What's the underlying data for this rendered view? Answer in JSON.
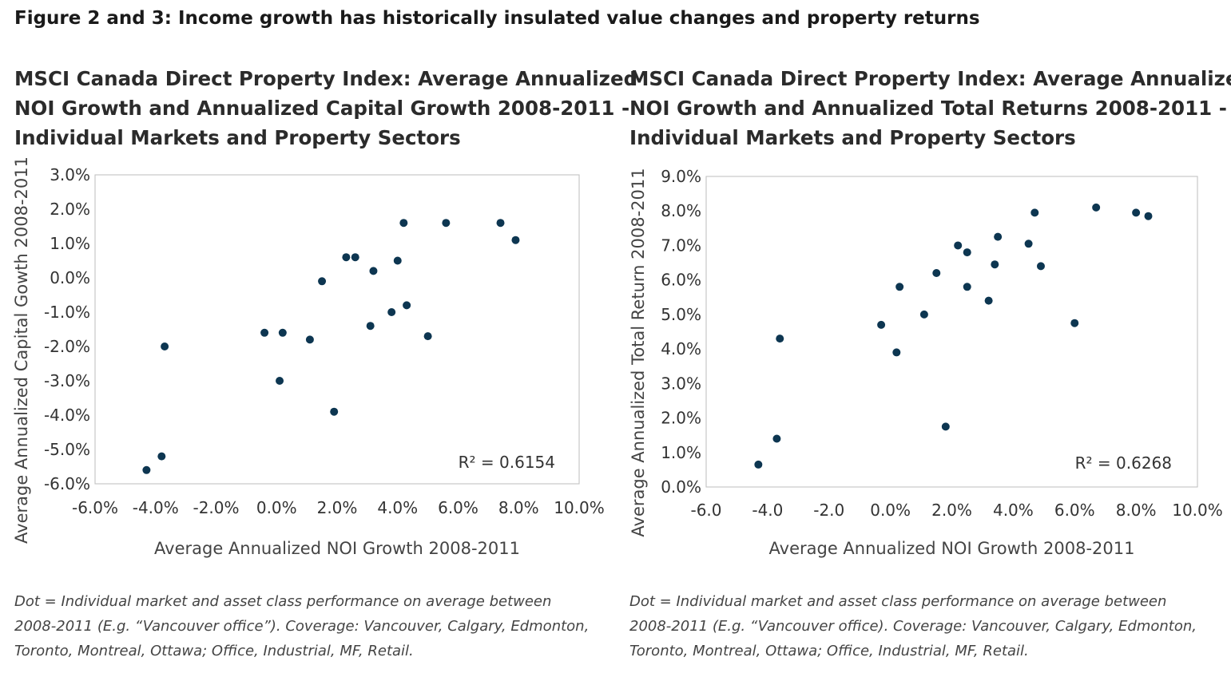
{
  "figure_title": "Figure 2 and 3: Income growth has historically insulated value changes and property returns",
  "chart_data": [
    {
      "type": "scatter",
      "title_lines": [
        "MSCI Canada Direct Property Index: Average Annualized",
        "NOI Growth and Annualized Capital Growth 2008-2011 -",
        "Individual Markets and Property Sectors"
      ],
      "xlabel": "Average Annualized NOI Growth 2008-2011",
      "ylabel": "Average Annualized Capital Gowth 2008-2011",
      "xlim": [
        -6,
        10
      ],
      "ylim": [
        -6,
        3
      ],
      "x_ticks": [
        -6,
        -4,
        -2,
        0,
        2,
        4,
        6,
        8,
        10
      ],
      "x_tick_labels": [
        "-6.0%",
        "-4.0%",
        "-2.0%",
        "0.0%",
        "2.0%",
        "4.0%",
        "6.0%",
        "8.0%",
        "10.0%"
      ],
      "y_ticks": [
        3,
        2,
        1,
        0,
        -1,
        -2,
        -3,
        -4,
        -5,
        -6
      ],
      "y_tick_labels": [
        "3.0%",
        "2.0%",
        "1.0%",
        "0.0%",
        "-1.0%",
        "-2.0%",
        "-3.0%",
        "-4.0%",
        "-5.0%",
        "-6.0%"
      ],
      "r2_label": "R² = 0.6154",
      "grid": false,
      "series": [
        {
          "color": "#0d3651",
          "points": [
            [
              -4.3,
              -5.6
            ],
            [
              -3.8,
              -5.2
            ],
            [
              -3.7,
              -2.0
            ],
            [
              -0.4,
              -1.6
            ],
            [
              0.1,
              -3.0
            ],
            [
              0.2,
              -1.6
            ],
            [
              1.1,
              -1.8
            ],
            [
              1.5,
              -0.1
            ],
            [
              1.9,
              -3.9
            ],
            [
              2.3,
              0.6
            ],
            [
              2.6,
              0.6
            ],
            [
              3.1,
              -1.4
            ],
            [
              3.2,
              0.2
            ],
            [
              3.8,
              -1.0
            ],
            [
              4.0,
              0.5
            ],
            [
              4.2,
              1.6
            ],
            [
              4.3,
              -0.8
            ],
            [
              5.0,
              -1.7
            ],
            [
              5.6,
              1.6
            ],
            [
              7.4,
              1.6
            ],
            [
              7.9,
              1.1
            ]
          ]
        }
      ]
    },
    {
      "type": "scatter",
      "title_lines": [
        "MSCI Canada Direct Property Index: Average Annualized",
        "NOI Growth and Annualized Total Returns 2008-2011 -",
        "Individual Markets and Property Sectors"
      ],
      "xlabel": "Average Annualized NOI Growth 2008-2011",
      "ylabel": "Average Annualized Total Return 2008-2011",
      "xlim": [
        -6,
        10
      ],
      "ylim": [
        0,
        9
      ],
      "x_ticks": [
        -6,
        -4,
        -2,
        0,
        2,
        4,
        6,
        8,
        10
      ],
      "x_tick_labels": [
        "-6.0",
        "-4.0",
        "-2.0",
        "0.0%",
        "2.0%",
        "4.0%",
        "6.0%",
        "8.0%",
        "10.0%"
      ],
      "y_ticks": [
        9,
        8,
        7,
        6,
        5,
        4,
        3,
        2,
        1,
        0
      ],
      "y_tick_labels": [
        "9.0%",
        "8.0%",
        "7.0%",
        "6.0%",
        "5.0%",
        "4.0%",
        "3.0%",
        "2.0%",
        "1.0%",
        "0.0%"
      ],
      "r2_label": "R² = 0.6268",
      "grid": false,
      "series": [
        {
          "color": "#0d3651",
          "points": [
            [
              -4.3,
              0.65
            ],
            [
              -3.7,
              1.4
            ],
            [
              -3.6,
              4.3
            ],
            [
              -0.3,
              4.7
            ],
            [
              0.2,
              3.9
            ],
            [
              0.3,
              5.8
            ],
            [
              1.1,
              5.0
            ],
            [
              1.5,
              6.2
            ],
            [
              1.8,
              1.75
            ],
            [
              2.2,
              7.0
            ],
            [
              2.5,
              6.8
            ],
            [
              2.5,
              5.8
            ],
            [
              3.4,
              6.45
            ],
            [
              3.2,
              5.4
            ],
            [
              3.5,
              7.25
            ],
            [
              4.5,
              7.05
            ],
            [
              4.7,
              7.95
            ],
            [
              4.9,
              6.4
            ],
            [
              6.0,
              4.75
            ],
            [
              6.7,
              8.1
            ],
            [
              8.0,
              7.95
            ],
            [
              8.4,
              7.85
            ]
          ]
        }
      ]
    }
  ],
  "notes": [
    [
      "Dot = Individual market and asset class performance on average between",
      "2008-2011 (E.g. “Vancouver office”). Coverage: Vancouver, Calgary, Edmonton,",
      "Toronto, Montreal, Ottawa; Office, Industrial, MF, Retail."
    ],
    [
      "Dot = Individual market and asset class performance on average between",
      "2008-2011 (E.g. “Vancouver office). Coverage: Vancouver, Calgary, Edmonton,",
      "Toronto, Montreal, Ottawa; Office, Industrial, MF, Retail."
    ]
  ]
}
